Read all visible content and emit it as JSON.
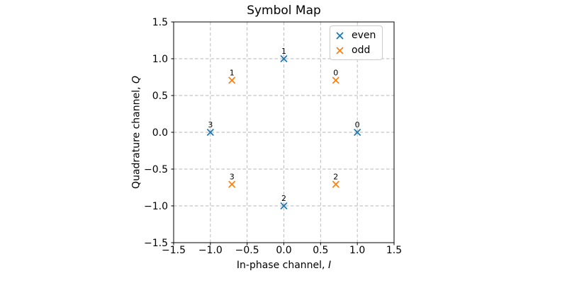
{
  "chart_data": {
    "type": "scatter",
    "title": "Symbol Map",
    "xlabel": "In-phase channel, I",
    "ylabel": "Quadrature channel, Q",
    "xlim": [
      -1.5,
      1.5
    ],
    "ylim": [
      -1.5,
      1.5
    ],
    "xticks": [
      -1.5,
      -1.0,
      -0.5,
      0.0,
      0.5,
      1.0,
      1.5
    ],
    "yticks": [
      -1.5,
      -1.0,
      -0.5,
      0.0,
      0.5,
      1.0,
      1.5
    ],
    "xtick_labels": [
      "−1.5",
      "−1.0",
      "−0.5",
      "0.0",
      "0.5",
      "1.0",
      "1.5"
    ],
    "ytick_labels": [
      "−1.5",
      "−1.0",
      "−0.5",
      "0.0",
      "0.5",
      "1.0",
      "1.5"
    ],
    "grid": true,
    "grid_style": "dashed",
    "marker": "x",
    "legend_position": "upper right",
    "series": [
      {
        "name": "even",
        "color": "#1f77b4",
        "points": [
          {
            "x": 1.0,
            "y": 0.0,
            "label": "0"
          },
          {
            "x": 0.0,
            "y": 1.0,
            "label": "1"
          },
          {
            "x": 0.0,
            "y": -1.0,
            "label": "2"
          },
          {
            "x": -1.0,
            "y": 0.0,
            "label": "3"
          }
        ]
      },
      {
        "name": "odd",
        "color": "#ff7f0e",
        "points": [
          {
            "x": 0.7071,
            "y": 0.7071,
            "label": "0"
          },
          {
            "x": -0.7071,
            "y": 0.7071,
            "label": "1"
          },
          {
            "x": 0.7071,
            "y": -0.7071,
            "label": "2"
          },
          {
            "x": -0.7071,
            "y": -0.7071,
            "label": "3"
          }
        ]
      }
    ]
  },
  "axes": {
    "xlabel_text": "In-phase channel, ",
    "xlabel_var": "I",
    "ylabel_text": "Quadrature channel, ",
    "ylabel_var": "Q"
  },
  "style": {
    "grid_color": "#b5b5b5",
    "axis_color": "#000000",
    "background": "#ffffff"
  }
}
